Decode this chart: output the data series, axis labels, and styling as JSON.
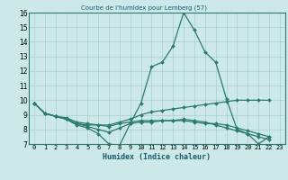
{
  "title": "Courbe de l'humidex pour Lemberg (57)",
  "xlabel": "Humidex (Indice chaleur)",
  "xlim": [
    -0.5,
    23.5
  ],
  "ylim": [
    7,
    16
  ],
  "xticks": [
    0,
    1,
    2,
    3,
    4,
    5,
    6,
    7,
    8,
    9,
    10,
    11,
    12,
    13,
    14,
    15,
    16,
    17,
    18,
    19,
    20,
    21,
    22,
    23
  ],
  "yticks": [
    7,
    8,
    9,
    10,
    11,
    12,
    13,
    14,
    15,
    16
  ],
  "background_color": "#cce8e8",
  "grid_color": "#aacfcf",
  "line_color": "#2a7a70",
  "series": [
    [
      9.8,
      9.1,
      8.9,
      8.7,
      8.3,
      8.1,
      7.7,
      7.0,
      6.9,
      8.4,
      9.8,
      12.3,
      12.6,
      13.7,
      16.0,
      14.8,
      13.3,
      12.6,
      10.1,
      8.0,
      7.7,
      7.0,
      7.5
    ],
    [
      9.8,
      9.1,
      8.9,
      8.7,
      8.4,
      8.3,
      8.3,
      8.2,
      8.4,
      8.5,
      8.6,
      8.6,
      8.6,
      8.6,
      8.6,
      8.5,
      8.4,
      8.4,
      8.3,
      8.1,
      7.9,
      7.7,
      7.5
    ],
    [
      9.8,
      9.1,
      8.9,
      8.8,
      8.5,
      8.4,
      8.3,
      8.3,
      8.5,
      8.7,
      9.0,
      9.2,
      9.3,
      9.4,
      9.5,
      9.6,
      9.7,
      9.8,
      9.9,
      10.0,
      10.0,
      10.0,
      10.0
    ],
    [
      9.8,
      9.1,
      8.9,
      8.7,
      8.4,
      8.2,
      8.0,
      7.8,
      8.1,
      8.4,
      8.5,
      8.5,
      8.6,
      8.6,
      8.7,
      8.6,
      8.5,
      8.3,
      8.1,
      7.9,
      7.7,
      7.5,
      7.3
    ]
  ]
}
